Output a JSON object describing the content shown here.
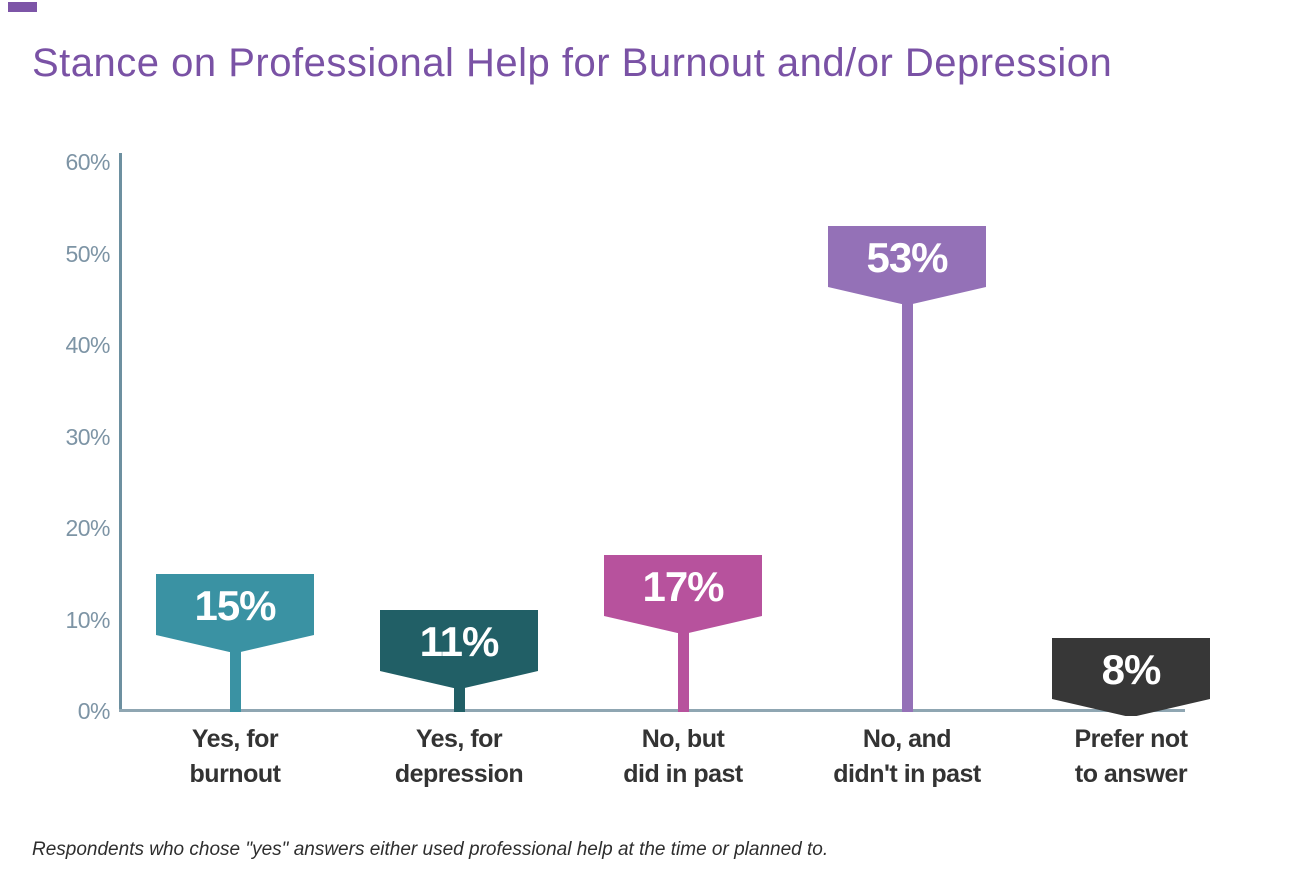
{
  "page": {
    "title": "Stance on Professional Help for Burnout and/or Depression",
    "footnote": "Respondents who chose \"yes\" answers either used professional help at the time or planned to.",
    "title_color": "#7a52a5",
    "corner_mark_color": "#7d55a7",
    "footnote_color": "#2e2e2e"
  },
  "chart_data": {
    "type": "bar",
    "title": "Stance on Professional Help for Burnout and/or Depression",
    "categories": [
      "Yes, for burnout",
      "Yes, for depression",
      "No, but did in past",
      "No, and didn't in past",
      "Prefer not to answer"
    ],
    "category_lines": [
      [
        "Yes, for",
        "burnout"
      ],
      [
        "Yes, for",
        "depression"
      ],
      [
        "No, but",
        "did in past"
      ],
      [
        "No, and",
        "didn't in past"
      ],
      [
        "Prefer not",
        "to answer"
      ]
    ],
    "values": [
      15,
      11,
      17,
      53,
      8
    ],
    "value_labels": [
      "15%",
      "11%",
      "17%",
      "53%",
      "8%"
    ],
    "bar_colors": [
      "#3a92a3",
      "#215f66",
      "#b7529d",
      "#9471b7",
      "#373737"
    ],
    "xlabel": "",
    "ylabel": "",
    "ylim": [
      0,
      60
    ],
    "y_ticks": [
      "0%",
      "10%",
      "20%",
      "30%",
      "40%",
      "50%",
      "60%"
    ],
    "y_tick_values": [
      0,
      10,
      20,
      30,
      40,
      50,
      60
    ],
    "grid": false,
    "legend": false,
    "bar_style": "flag-lollipop",
    "axis_color": "#6d90a0",
    "baseline_color": "#8fa6b2",
    "tick_label_color": "#7d94a5",
    "category_label_color": "#333333",
    "value_label_color": "#ffffff",
    "note": "Respondents who chose \"yes\" answers either used professional help at the time or planned to."
  }
}
